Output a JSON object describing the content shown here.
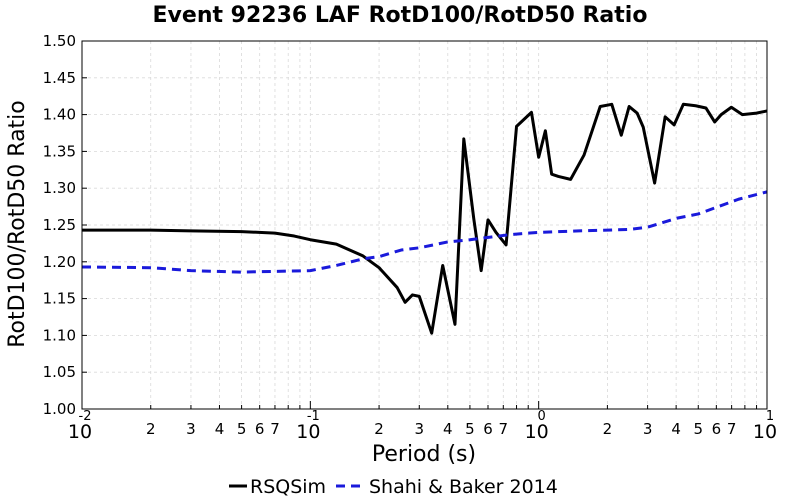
{
  "chart_data": {
    "type": "line",
    "title": "Event 92236 LAF RotD100/RotD50 Ratio",
    "xlabel": "Period (s)",
    "ylabel": "RotD100/RotD50 Ratio",
    "xscale": "log",
    "xlim": [
      0.01,
      10
    ],
    "ylim": [
      1.0,
      1.5
    ],
    "y_ticks": [
      "1.00",
      "1.05",
      "1.10",
      "1.15",
      "1.20",
      "1.25",
      "1.30",
      "1.35",
      "1.40",
      "1.45",
      "1.50"
    ],
    "x_major_ticks": [
      {
        "base": "10",
        "exp": "-2"
      },
      {
        "base": "10",
        "exp": "-1"
      },
      {
        "base": "10",
        "exp": "0"
      },
      {
        "base": "10",
        "exp": "1"
      }
    ],
    "x_minor_labels": [
      "2",
      "3",
      "4",
      "5",
      "6",
      "7"
    ],
    "grid": true,
    "legend_position": "bottom",
    "series": [
      {
        "name": "RSQSim",
        "color": "#000000",
        "style": "solid",
        "x": [
          0.01,
          0.02,
          0.03,
          0.05,
          0.07,
          0.085,
          0.1,
          0.13,
          0.17,
          0.2,
          0.24,
          0.26,
          0.28,
          0.3,
          0.34,
          0.38,
          0.43,
          0.47,
          0.52,
          0.56,
          0.6,
          0.65,
          0.72,
          0.8,
          0.93,
          1.0,
          1.07,
          1.14,
          1.22,
          1.38,
          1.58,
          1.86,
          2.09,
          2.3,
          2.49,
          2.7,
          2.87,
          3.22,
          3.58,
          3.92,
          4.3,
          4.87,
          5.4,
          5.9,
          6.3,
          6.98,
          7.8,
          9.0,
          10.0
        ],
        "y": [
          1.243,
          1.243,
          1.242,
          1.241,
          1.239,
          1.235,
          1.23,
          1.224,
          1.208,
          1.192,
          1.165,
          1.145,
          1.155,
          1.153,
          1.103,
          1.195,
          1.115,
          1.367,
          1.258,
          1.188,
          1.257,
          1.24,
          1.223,
          1.384,
          1.403,
          1.342,
          1.378,
          1.319,
          1.316,
          1.312,
          1.345,
          1.411,
          1.414,
          1.372,
          1.411,
          1.402,
          1.383,
          1.307,
          1.397,
          1.386,
          1.414,
          1.412,
          1.409,
          1.39,
          1.4,
          1.41,
          1.4,
          1.402,
          1.405
        ]
      },
      {
        "name": "Shahi & Baker 2014",
        "color": "#1a1adb",
        "style": "dashed",
        "x": [
          0.01,
          0.02,
          0.03,
          0.05,
          0.07,
          0.1,
          0.13,
          0.17,
          0.2,
          0.25,
          0.3,
          0.4,
          0.5,
          0.75,
          1.0,
          1.5,
          2.0,
          2.5,
          3.0,
          4.0,
          5.0,
          7.5,
          10.0
        ],
        "y": [
          1.193,
          1.192,
          1.188,
          1.186,
          1.187,
          1.188,
          1.195,
          1.204,
          1.207,
          1.216,
          1.219,
          1.227,
          1.23,
          1.237,
          1.24,
          1.242,
          1.243,
          1.244,
          1.247,
          1.259,
          1.265,
          1.285,
          1.295
        ]
      }
    ]
  }
}
